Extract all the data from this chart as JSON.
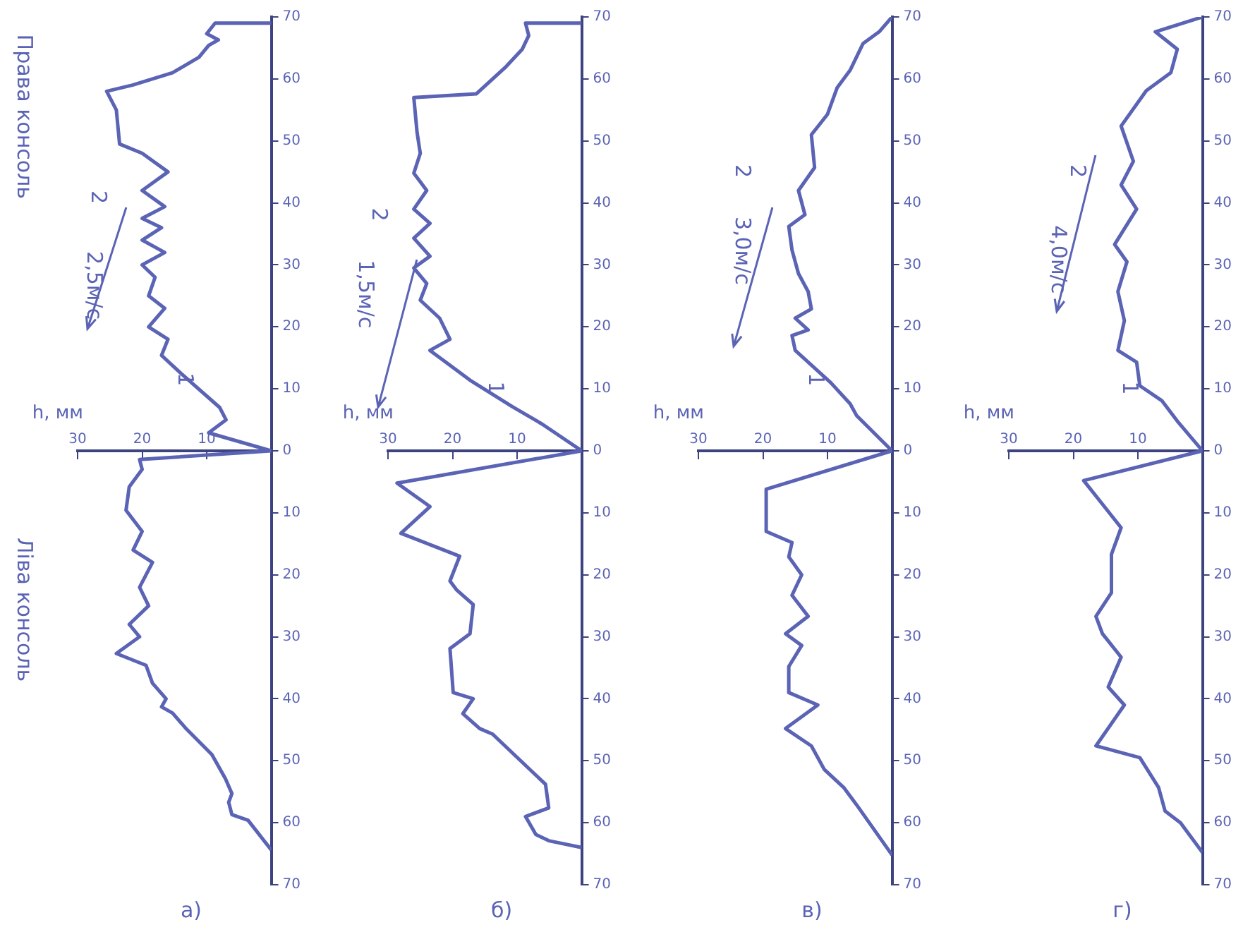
{
  "chart_data": [
    {
      "type": "line",
      "title": "а)",
      "xlabel": "h, мм",
      "color": "#5b63b5",
      "xlim": [
        30,
        0
      ],
      "xticks": [
        10,
        20,
        30
      ],
      "ylim": [
        70,
        -70
      ],
      "yticks": [
        {
          "value": -70,
          "label": "70"
        },
        {
          "value": -60,
          "label": "60"
        },
        {
          "value": -50,
          "label": "50"
        },
        {
          "value": -40,
          "label": "40"
        },
        {
          "value": -30,
          "label": "30"
        },
        {
          "value": -20,
          "label": "20"
        },
        {
          "value": -10,
          "label": "10"
        },
        0,
        10,
        20,
        30,
        40,
        50,
        60,
        70
      ],
      "values": [
        64.4,
        59.6,
        58.7,
        56.7,
        55.3,
        52.9,
        49,
        44.7,
        42.3,
        41.3,
        40,
        37.5,
        34.6,
        32.7,
        30,
        28,
        25,
        22,
        18,
        16,
        13,
        9.6,
        5.8,
        3,
        1.4,
        0,
        -2.9,
        -5,
        -7,
        -12.5,
        -15.4,
        -18,
        -20,
        -23,
        -25,
        -28,
        -30,
        -32,
        -34,
        -36,
        -37.5,
        -39.4,
        -42,
        -45,
        -48,
        -49.5,
        -55,
        -58,
        -59,
        -61,
        -63.5,
        -65.4,
        -66.3,
        -67.3,
        -69,
        -69
      ],
      "x": [
        0,
        3.6,
        6.1,
        6.6,
        6.1,
        7.1,
        9.2,
        13.3,
        15.3,
        17,
        16.3,
        18.4,
        19.4,
        24,
        20.4,
        22,
        19,
        20.4,
        18.4,
        21.4,
        20,
        22.5,
        22,
        20,
        20.4,
        0,
        9.7,
        7,
        8,
        14,
        17,
        16,
        19,
        16.5,
        19,
        18,
        20,
        16.5,
        20,
        17,
        20,
        16.5,
        20,
        16,
        20,
        23.5,
        24,
        25.5,
        21.5,
        15.3,
        11.2,
        9.7,
        8.2,
        10,
        8.7,
        0
      ],
      "annotations": [
        "Права консоль",
        "Ліва консоль",
        "2,5м/с",
        "2",
        "1"
      ]
    },
    {
      "type": "line",
      "title": "б)",
      "xlabel": "h, мм",
      "color": "#5b63b5",
      "xlim": [
        30,
        0
      ],
      "xticks": [
        10,
        20,
        30
      ],
      "ylim": [
        70,
        -70
      ],
      "yticks": [
        {
          "value": -70,
          "label": "70"
        },
        {
          "value": -60,
          "label": "60"
        },
        {
          "value": -50,
          "label": "50"
        },
        {
          "value": -40,
          "label": "40"
        },
        {
          "value": -30,
          "label": "30"
        },
        {
          "value": -20,
          "label": "20"
        },
        {
          "value": -10,
          "label": "10"
        },
        0,
        10,
        20,
        30,
        40,
        50,
        60,
        70
      ],
      "values": [
        64,
        62.9,
        61.9,
        59,
        57.6,
        53.8,
        45.7,
        44.8,
        42.4,
        40,
        39,
        31.9,
        29.5,
        24.8,
        22.4,
        21,
        17,
        13.3,
        9,
        5.2,
        0,
        -4.3,
        -7.1,
        -11.4,
        -16.2,
        -18,
        -21.4,
        -24.3,
        -27,
        -29.5,
        -31.4,
        -34.3,
        -36.7,
        -39,
        -42,
        -44.8,
        -48,
        -51.4,
        -57,
        -57.6,
        -62,
        -64.8,
        -67,
        -69,
        -69
      ],
      "x": [
        0,
        5.1,
        7.1,
        8.7,
        5.1,
        5.6,
        13.8,
        15.8,
        18.4,
        16.8,
        19.9,
        20.4,
        17.3,
        16.8,
        19.4,
        20.4,
        18.9,
        28,
        23.5,
        28.6,
        0,
        6.1,
        10.7,
        17.3,
        23.5,
        20.4,
        22,
        25,
        24,
        26,
        23.5,
        26,
        23.5,
        26,
        24,
        26,
        25,
        25.5,
        26,
        16.3,
        11.7,
        9.2,
        8.2,
        8.7,
        0
      ],
      "annotations": [
        "1,5м/с",
        "2",
        "1"
      ]
    },
    {
      "type": "line",
      "title": "в)",
      "xlabel": "h, мм",
      "color": "#5b63b5",
      "xlim": [
        30,
        0
      ],
      "xticks": [
        10,
        20,
        30
      ],
      "ylim": [
        70,
        -70
      ],
      "yticks": [
        {
          "value": -70,
          "label": "70"
        },
        {
          "value": -60,
          "label": "60"
        },
        {
          "value": -50,
          "label": "50"
        },
        {
          "value": -40,
          "label": "40"
        },
        {
          "value": -30,
          "label": "30"
        },
        {
          "value": -20,
          "label": "20"
        },
        {
          "value": -10,
          "label": "10"
        },
        0,
        10,
        20,
        30,
        40,
        50,
        60,
        70
      ],
      "values": [
        65.2,
        57.1,
        54.3,
        51.4,
        47.6,
        44.8,
        41,
        39,
        34.8,
        31.4,
        29.5,
        26.7,
        23.3,
        20,
        17.1,
        14.8,
        13,
        6.2,
        0,
        -5.7,
        -7.6,
        -11,
        -16.2,
        -18.6,
        -19.5,
        -21.4,
        -22.9,
        -25.7,
        -28.6,
        -32.4,
        -36.2,
        -38.1,
        -42,
        -45.7,
        -51,
        -54.3,
        -58.6,
        -61.4,
        -65.7,
        -67.6,
        -70
      ],
      "x": [
        0,
        5.5,
        7.5,
        10.5,
        12.5,
        16.5,
        11.5,
        16,
        16,
        14,
        16.5,
        13,
        15.5,
        14,
        16,
        15.5,
        19.5,
        19.5,
        0,
        5.5,
        6.5,
        9.5,
        15,
        15.5,
        13,
        15,
        12.5,
        13,
        14.5,
        15.5,
        16,
        13.5,
        14.5,
        12,
        12.5,
        10,
        8.5,
        6.5,
        4.5,
        2,
        0
      ],
      "annotations": [
        "3,0м/с",
        "2",
        "1"
      ]
    },
    {
      "type": "line",
      "title": "г)",
      "xlabel": "h, мм",
      "color": "#5b63b5",
      "xlim": [
        30,
        0
      ],
      "xticks": [
        10,
        20,
        30
      ],
      "ylim": [
        70,
        -70
      ],
      "yticks": [
        {
          "value": -70,
          "label": "70"
        },
        {
          "value": -60,
          "label": "60"
        },
        {
          "value": -50,
          "label": "50"
        },
        {
          "value": -40,
          "label": "40"
        },
        {
          "value": -30,
          "label": "30"
        },
        {
          "value": -20,
          "label": "20"
        },
        {
          "value": -10,
          "label": "10"
        },
        0,
        10,
        20,
        30,
        40,
        50,
        60,
        70
      ],
      "values": [
        64.8,
        60,
        58.1,
        54.3,
        49.5,
        47.6,
        41,
        38.1,
        33.3,
        29.5,
        26.7,
        22.9,
        16.7,
        12.4,
        8.6,
        4.8,
        0,
        -4.8,
        -8.1,
        -10.5,
        -14.3,
        -16.2,
        -21,
        -25.7,
        -30.5,
        -33.3,
        -39,
        -42.9,
        -46.7,
        -52.4,
        -58.1,
        -61,
        -64.8,
        -67.6,
        -70
      ],
      "x": [
        0,
        3.4,
        5.8,
        6.8,
        9.7,
        16.5,
        12.1,
        14.6,
        12.6,
        15.5,
        16.5,
        14.1,
        14.1,
        12.6,
        15.5,
        18.4,
        0,
        3.9,
        6.3,
        9.7,
        10.2,
        13.1,
        12.1,
        13.1,
        11.7,
        13.6,
        10.2,
        12.6,
        10.7,
        12.6,
        8.7,
        4.9,
        3.9,
        7.3,
        0
      ],
      "annotations": [
        "4,0м/с",
        "2",
        "1"
      ]
    }
  ]
}
